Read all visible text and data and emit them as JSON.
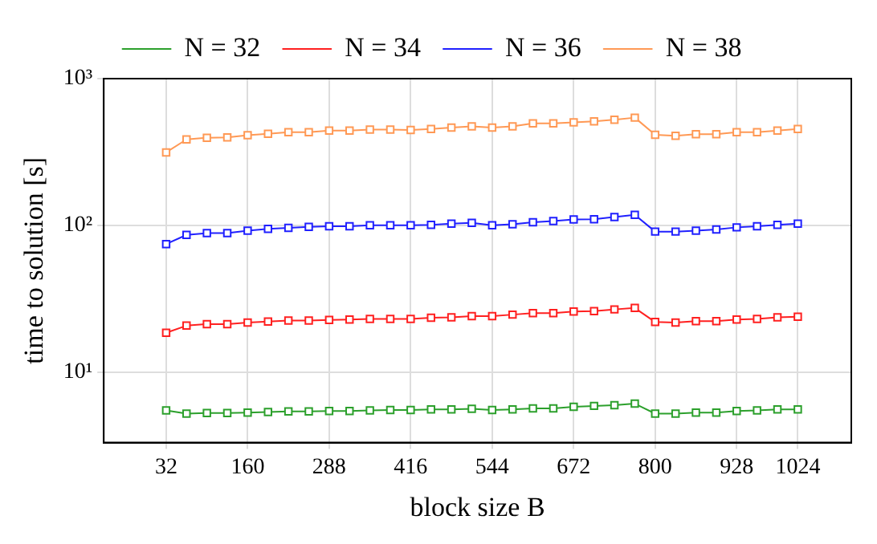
{
  "chart_data": {
    "type": "line",
    "xlabel": "block size B",
    "ylabel": "time to solution [s]",
    "x": [
      32,
      64,
      96,
      128,
      160,
      192,
      224,
      256,
      288,
      320,
      352,
      384,
      416,
      448,
      480,
      512,
      544,
      576,
      608,
      640,
      672,
      704,
      736,
      768,
      800,
      832,
      864,
      896,
      928,
      960,
      992,
      1024
    ],
    "xlim": [
      -66,
      1108
    ],
    "xticks": [
      32,
      160,
      288,
      416,
      544,
      672,
      800,
      928,
      1024
    ],
    "log": "y",
    "ylim": [
      3.3,
      1000
    ],
    "yticks": [
      {
        "value": 10,
        "label": "10¹"
      },
      {
        "value": 100,
        "label": "10²"
      },
      {
        "value": 1000,
        "label": "10³"
      }
    ],
    "grid": true,
    "legend": "top",
    "marker": "square",
    "line_style": "solid",
    "series": [
      {
        "name": "N = 32",
        "color": "#2ca02c",
        "values": [
          5.47,
          5.2,
          5.25,
          5.25,
          5.29,
          5.33,
          5.38,
          5.38,
          5.42,
          5.42,
          5.47,
          5.51,
          5.51,
          5.56,
          5.56,
          5.6,
          5.51,
          5.56,
          5.65,
          5.65,
          5.78,
          5.87,
          5.93,
          6.08,
          5.2,
          5.2,
          5.29,
          5.29,
          5.42,
          5.47,
          5.56,
          5.56
        ]
      },
      {
        "name": "N = 34",
        "color": "#ff2020",
        "values": [
          18.5,
          20.7,
          21.2,
          21.2,
          21.7,
          22.1,
          22.4,
          22.4,
          22.6,
          22.8,
          23.0,
          23.0,
          23.0,
          23.4,
          23.6,
          24.0,
          24.0,
          24.6,
          25.2,
          25.2,
          25.8,
          26.0,
          26.7,
          27.3,
          21.9,
          21.7,
          22.2,
          22.2,
          22.8,
          23.0,
          23.6,
          23.8
        ]
      },
      {
        "name": "N = 36",
        "color": "#2020ff",
        "values": [
          74.5,
          86,
          88.5,
          88.5,
          92,
          94.6,
          96,
          97.7,
          98.4,
          98.4,
          100,
          100,
          100,
          100.8,
          102.6,
          104,
          100,
          101.6,
          105,
          107,
          109.5,
          110,
          114,
          118,
          90.6,
          90.6,
          92,
          93.6,
          96.8,
          98.4,
          100.8,
          102.6
        ]
      },
      {
        "name": "N = 38",
        "color": "#ff9955",
        "values": [
          314,
          385,
          395,
          398,
          411,
          421,
          431,
          431,
          443,
          443,
          450,
          450,
          447,
          453,
          464,
          472,
          464,
          472,
          495,
          495,
          504,
          512,
          525,
          542,
          414,
          407,
          418,
          418,
          431,
          431,
          443,
          453
        ]
      }
    ]
  }
}
